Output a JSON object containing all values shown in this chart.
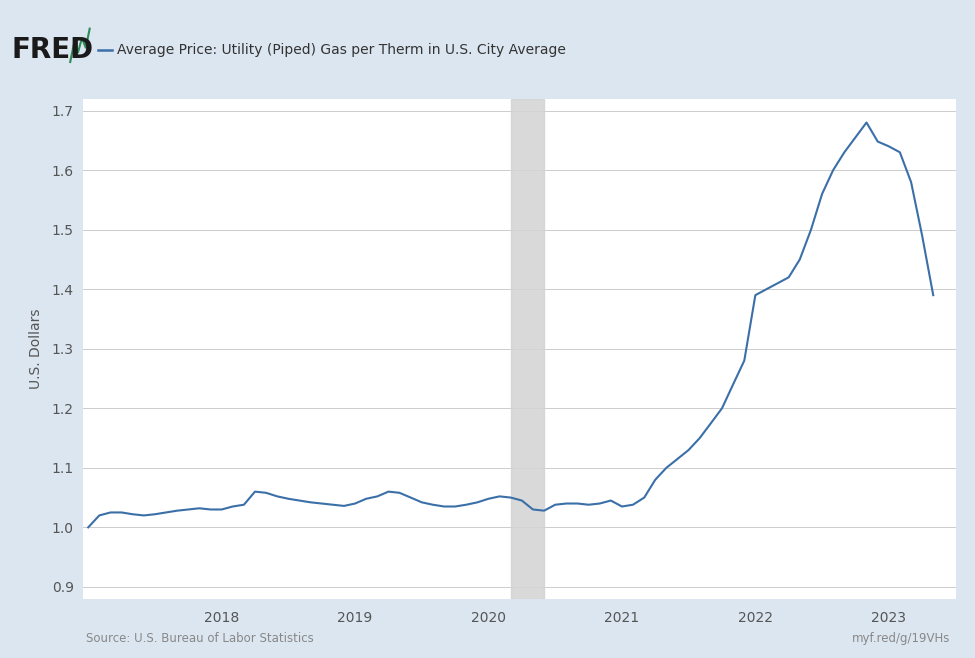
{
  "title": "Average Price: Utility (Piped) Gas per Therm in U.S. City Average",
  "ylabel": "U.S. Dollars",
  "source_left": "Source: U.S. Bureau of Labor Statistics",
  "source_right": "myf.red/g/19VHs",
  "background_outer": "#dce6f0",
  "background_inner": "#ffffff",
  "line_color": "#3b6fa8",
  "shade_color": "#d3d3d3",
  "shade_x_start": 2020.167,
  "shade_x_end": 2020.417,
  "ylim": [
    0.88,
    1.72
  ],
  "yticks": [
    0.9,
    1.0,
    1.1,
    1.2,
    1.3,
    1.4,
    1.5,
    1.6,
    1.7
  ],
  "dates": [
    2017.0,
    2017.083,
    2017.167,
    2017.25,
    2017.333,
    2017.417,
    2017.5,
    2017.583,
    2017.667,
    2017.75,
    2017.833,
    2017.917,
    2018.0,
    2018.083,
    2018.167,
    2018.25,
    2018.333,
    2018.417,
    2018.5,
    2018.583,
    2018.667,
    2018.75,
    2018.833,
    2018.917,
    2019.0,
    2019.083,
    2019.167,
    2019.25,
    2019.333,
    2019.417,
    2019.5,
    2019.583,
    2019.667,
    2019.75,
    2019.833,
    2019.917,
    2020.0,
    2020.083,
    2020.167,
    2020.25,
    2020.333,
    2020.417,
    2020.5,
    2020.583,
    2020.667,
    2020.75,
    2020.833,
    2020.917,
    2021.0,
    2021.083,
    2021.167,
    2021.25,
    2021.333,
    2021.417,
    2021.5,
    2021.583,
    2021.667,
    2021.75,
    2021.833,
    2021.917,
    2022.0,
    2022.083,
    2022.167,
    2022.25,
    2022.333,
    2022.417,
    2022.5,
    2022.583,
    2022.667,
    2022.75,
    2022.833,
    2022.917,
    2023.0,
    2023.083,
    2023.167,
    2023.25,
    2023.333
  ],
  "values": [
    1.0,
    1.02,
    1.025,
    1.025,
    1.022,
    1.02,
    1.022,
    1.025,
    1.028,
    1.03,
    1.032,
    1.03,
    1.03,
    1.035,
    1.038,
    1.06,
    1.058,
    1.052,
    1.048,
    1.045,
    1.042,
    1.04,
    1.038,
    1.036,
    1.04,
    1.048,
    1.052,
    1.06,
    1.058,
    1.05,
    1.042,
    1.038,
    1.035,
    1.035,
    1.038,
    1.042,
    1.048,
    1.052,
    1.05,
    1.045,
    1.03,
    1.028,
    1.038,
    1.04,
    1.04,
    1.038,
    1.04,
    1.045,
    1.035,
    1.038,
    1.05,
    1.08,
    1.1,
    1.115,
    1.13,
    1.15,
    1.175,
    1.2,
    1.24,
    1.28,
    1.39,
    1.4,
    1.41,
    1.42,
    1.45,
    1.5,
    1.56,
    1.6,
    1.63,
    1.655,
    1.68,
    1.648,
    1.64,
    1.63,
    1.58,
    1.49,
    1.39
  ],
  "xtick_years": [
    2018,
    2019,
    2020,
    2021,
    2022,
    2023
  ],
  "xlim_start": 2016.96,
  "xlim_end": 2023.5
}
